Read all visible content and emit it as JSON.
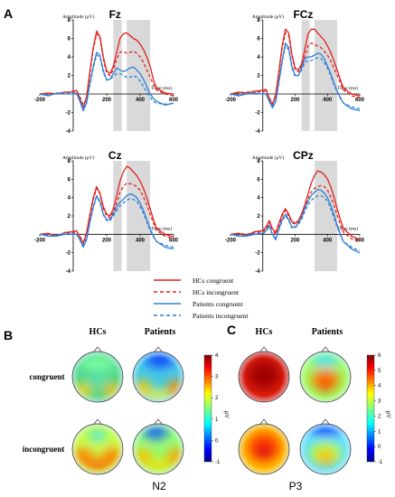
{
  "panels": {
    "A": "A",
    "B": "B",
    "C": "C"
  },
  "chart_data": [
    {
      "type": "line",
      "title": "Fz",
      "ylabel": "Amplitude (μV)",
      "xlabel": "Time (ms)",
      "xlim": [
        -200,
        600
      ],
      "ylim": [
        -4,
        8
      ],
      "xticks": [
        "-200",
        "200",
        "400",
        "600"
      ],
      "yticks": [
        "-4",
        "-2",
        "2",
        "4",
        "6",
        "8"
      ],
      "shaded_windows_ms": [
        [
          240,
          290
        ],
        [
          320,
          460
        ]
      ],
      "x": [
        -200,
        -150,
        -100,
        -50,
        0,
        20,
        40,
        60,
        80,
        100,
        120,
        140,
        160,
        180,
        200,
        220,
        240,
        260,
        280,
        300,
        320,
        340,
        360,
        380,
        400,
        420,
        440,
        460,
        480,
        500,
        550,
        600
      ],
      "series": [
        {
          "name": "HCs congruent",
          "values": [
            0,
            0.1,
            0,
            0.2,
            0.2,
            0.4,
            -0.5,
            -1.5,
            -0.3,
            2.5,
            5.0,
            6.8,
            6.2,
            4.0,
            2.5,
            2.2,
            3.0,
            4.5,
            6.0,
            6.5,
            6.6,
            6.3,
            6.0,
            5.8,
            5.4,
            4.8,
            4.0,
            3.0,
            1.5,
            0.6,
            0.1,
            0
          ]
        },
        {
          "name": "HCs incongruent",
          "values": [
            0,
            0,
            0.1,
            0.1,
            0.3,
            0.3,
            -0.3,
            -1.2,
            -0.5,
            2.2,
            4.8,
            6.5,
            6.0,
            3.8,
            2.2,
            2.0,
            2.6,
            3.8,
            4.5,
            4.6,
            4.4,
            4.5,
            4.6,
            4.4,
            4.0,
            3.4,
            2.6,
            1.8,
            1.0,
            0.4,
            0,
            -0.2
          ]
        },
        {
          "name": "Patients congruent",
          "values": [
            0,
            -0.2,
            0.1,
            0,
            0,
            0.1,
            -0.8,
            -1.8,
            -1.0,
            1.2,
            3.0,
            4.5,
            4.2,
            2.5,
            1.5,
            1.6,
            2.2,
            2.8,
            2.6,
            2.4,
            2.6,
            2.8,
            2.9,
            2.6,
            2.2,
            1.6,
            0.8,
            0,
            -0.5,
            -0.8,
            -1.2,
            -1.0
          ]
        },
        {
          "name": "Patients incongruent",
          "values": [
            0,
            -0.1,
            0,
            0.1,
            0.1,
            0,
            -0.6,
            -1.6,
            -0.8,
            1.0,
            2.8,
            4.2,
            4.0,
            2.3,
            1.5,
            1.6,
            1.9,
            2.2,
            2.2,
            2.0,
            1.8,
            1.8,
            2.0,
            1.8,
            1.4,
            0.8,
            0.2,
            -0.4,
            -0.8,
            -1.0,
            -1.1,
            -1.0
          ]
        }
      ]
    },
    {
      "type": "line",
      "title": "FCz",
      "ylabel": "Amplitude (μV)",
      "xlabel": "Time (ms)",
      "xlim": [
        -200,
        600
      ],
      "ylim": [
        -4,
        8
      ],
      "xticks": [
        "-200",
        "200",
        "400",
        "600"
      ],
      "yticks": [
        "-4",
        "-2",
        "2",
        "4",
        "6",
        "8"
      ],
      "shaded_windows_ms": [
        [
          240,
          290
        ],
        [
          320,
          460
        ]
      ],
      "x": [
        -200,
        -150,
        -100,
        -50,
        0,
        20,
        40,
        60,
        80,
        100,
        120,
        140,
        160,
        180,
        200,
        220,
        240,
        260,
        280,
        300,
        320,
        340,
        360,
        380,
        400,
        420,
        440,
        460,
        480,
        500,
        550,
        600
      ],
      "series": [
        {
          "name": "HCs congruent",
          "values": [
            0,
            0.2,
            0.1,
            0.3,
            0.4,
            0.5,
            -0.5,
            -1.2,
            0,
            2.5,
            5.2,
            7.0,
            6.6,
            4.3,
            2.8,
            2.6,
            3.2,
            4.8,
            6.5,
            7.0,
            7.0,
            6.6,
            6.2,
            5.8,
            5.2,
            4.5,
            3.6,
            2.6,
            1.5,
            0.6,
            0,
            -0.2
          ]
        },
        {
          "name": "HCs incongruent",
          "values": [
            0,
            0.1,
            0.2,
            0.2,
            0.3,
            0.3,
            -0.4,
            -1.0,
            -0.3,
            2.2,
            5.0,
            6.6,
            6.3,
            4.1,
            2.6,
            2.4,
            3.0,
            4.0,
            5.2,
            5.5,
            5.3,
            5.2,
            5.0,
            4.6,
            4.2,
            3.6,
            2.8,
            2.0,
            1.2,
            0.4,
            -0.2,
            -0.4
          ]
        },
        {
          "name": "Patients congruent",
          "values": [
            0,
            -0.2,
            0,
            0.1,
            0,
            0,
            -0.8,
            -1.5,
            -0.8,
            1.4,
            3.6,
            5.5,
            5.0,
            3.0,
            2.0,
            2.0,
            2.8,
            3.8,
            4.0,
            4.0,
            4.2,
            4.4,
            4.3,
            3.8,
            3.0,
            2.2,
            1.2,
            0.3,
            -0.4,
            -1.0,
            -1.6,
            -1.8
          ]
        },
        {
          "name": "Patients incongruent",
          "values": [
            0,
            -0.1,
            0.1,
            0,
            0.1,
            0,
            -0.7,
            -1.3,
            -0.7,
            1.2,
            3.4,
            5.2,
            4.8,
            2.8,
            1.9,
            2.0,
            2.6,
            3.4,
            3.6,
            3.6,
            3.8,
            3.9,
            3.8,
            3.4,
            2.8,
            2.0,
            1.0,
            0.2,
            -0.5,
            -1.0,
            -1.4,
            -1.6
          ]
        }
      ]
    },
    {
      "type": "line",
      "title": "Cz",
      "ylabel": "Amplitude (μV)",
      "xlabel": "Time (ms)",
      "xlim": [
        -200,
        600
      ],
      "ylim": [
        -4,
        8
      ],
      "xticks": [
        "-200",
        "200",
        "400",
        "600"
      ],
      "yticks": [
        "-4",
        "-2",
        "2",
        "4",
        "6",
        "8"
      ],
      "shaded_windows_ms": [
        [
          240,
          290
        ],
        [
          320,
          460
        ]
      ],
      "x": [
        -200,
        -150,
        -100,
        -50,
        0,
        20,
        40,
        60,
        80,
        100,
        120,
        140,
        160,
        180,
        200,
        220,
        240,
        260,
        280,
        300,
        320,
        340,
        360,
        380,
        400,
        420,
        440,
        460,
        480,
        500,
        550,
        600
      ],
      "series": [
        {
          "name": "HCs congruent",
          "values": [
            0,
            0.1,
            -0.2,
            0.2,
            0.3,
            0.4,
            -0.3,
            -1.0,
            0.2,
            2.2,
            4.0,
            5.2,
            4.5,
            3.0,
            2.2,
            2.0,
            2.8,
            4.2,
            5.8,
            6.8,
            7.4,
            7.2,
            6.8,
            6.4,
            5.8,
            5.0,
            4.0,
            2.8,
            1.6,
            0.6,
            0,
            -0.3
          ]
        },
        {
          "name": "HCs incongruent",
          "values": [
            0,
            0,
            -0.1,
            0.1,
            0.2,
            0.3,
            -0.2,
            -0.8,
            0,
            2.0,
            3.8,
            5.0,
            4.4,
            2.8,
            2.0,
            1.8,
            2.4,
            3.4,
            4.6,
            5.2,
            5.6,
            5.5,
            5.4,
            5.2,
            4.8,
            4.1,
            3.2,
            2.2,
            1.2,
            0.4,
            -0.2,
            -0.5
          ]
        },
        {
          "name": "Patients congruent",
          "values": [
            0,
            -0.2,
            -0.2,
            0,
            0,
            0,
            -0.6,
            -1.4,
            -0.6,
            1.4,
            3.0,
            4.2,
            3.6,
            2.2,
            1.6,
            1.6,
            2.2,
            3.0,
            3.5,
            3.8,
            4.2,
            4.4,
            4.3,
            4.0,
            3.4,
            2.6,
            1.6,
            0.6,
            -0.2,
            -0.8,
            -1.4,
            -1.6
          ]
        },
        {
          "name": "Patients incongruent",
          "values": [
            0,
            -0.1,
            -0.1,
            0.1,
            0.1,
            0,
            -0.5,
            -1.2,
            -0.4,
            1.3,
            2.9,
            4.1,
            3.5,
            2.1,
            1.5,
            1.5,
            2.0,
            2.6,
            3.1,
            3.4,
            3.7,
            3.9,
            3.8,
            3.6,
            3.0,
            2.3,
            1.4,
            0.4,
            -0.3,
            -0.8,
            -1.2,
            -1.4
          ]
        }
      ]
    },
    {
      "type": "line",
      "title": "CPz",
      "ylabel": "Amplitude (μV)",
      "xlabel": "Time (ms)",
      "xlim": [
        -200,
        600
      ],
      "ylim": [
        -4,
        8
      ],
      "xticks": [
        "-200",
        "200",
        "400",
        "600"
      ],
      "yticks": [
        "-4",
        "-2",
        "2",
        "4",
        "6",
        "8"
      ],
      "shaded_windows_ms": [
        [
          320,
          460
        ]
      ],
      "x": [
        -200,
        -150,
        -100,
        -50,
        0,
        20,
        40,
        60,
        80,
        100,
        120,
        140,
        160,
        180,
        200,
        220,
        240,
        260,
        280,
        300,
        320,
        340,
        360,
        380,
        400,
        420,
        440,
        460,
        480,
        500,
        550,
        600
      ],
      "series": [
        {
          "name": "HCs congruent",
          "values": [
            0,
            0.1,
            -0.1,
            0.3,
            0.4,
            0.8,
            1.5,
            0.6,
            0.2,
            1.2,
            2.2,
            2.8,
            2.2,
            1.4,
            1.2,
            1.5,
            2.2,
            3.2,
            4.4,
            5.6,
            6.4,
            6.9,
            6.8,
            6.5,
            6.0,
            5.2,
            4.1,
            2.8,
            1.6,
            0.6,
            -0.2,
            -0.6
          ]
        },
        {
          "name": "HCs incongruent",
          "values": [
            0,
            0.1,
            0,
            0.2,
            0.3,
            0.6,
            1.3,
            0.5,
            0,
            1.0,
            2.0,
            2.6,
            2.0,
            1.3,
            1.1,
            1.4,
            2.0,
            2.9,
            3.9,
            4.6,
            5.0,
            5.2,
            5.3,
            5.2,
            4.8,
            4.1,
            3.2,
            2.1,
            1.0,
            0.2,
            -0.5,
            -0.8
          ]
        },
        {
          "name": "Patients congruent",
          "values": [
            0,
            -0.2,
            -0.2,
            0,
            0.1,
            0.4,
            1.0,
            0,
            -0.6,
            0.6,
            1.6,
            2.2,
            1.6,
            0.8,
            0.8,
            1.2,
            1.8,
            2.8,
            3.6,
            4.2,
            4.6,
            4.9,
            4.8,
            4.5,
            4.0,
            3.2,
            2.2,
            1.0,
            0,
            -0.8,
            -1.6,
            -2.0
          ]
        },
        {
          "name": "Patients incongruent",
          "values": [
            0,
            -0.1,
            -0.1,
            0.1,
            0.1,
            0.3,
            0.9,
            -0.1,
            -0.4,
            0.5,
            1.5,
            2.0,
            1.5,
            0.7,
            0.7,
            1.1,
            1.6,
            2.5,
            3.2,
            3.7,
            4.0,
            4.2,
            4.2,
            4.0,
            3.6,
            2.8,
            1.8,
            0.8,
            -0.1,
            -0.8,
            -1.4,
            -1.8
          ]
        }
      ]
    }
  ],
  "legend": {
    "items": [
      {
        "label": "HCs congruent",
        "color": "#e3201b",
        "style": "solid"
      },
      {
        "label": "HCs incongruent",
        "color": "#e3201b",
        "style": "dashed"
      },
      {
        "label": "Patients congruent",
        "color": "#2f7fd6",
        "style": "solid"
      },
      {
        "label": "Patients incongruent",
        "color": "#2f7fd6",
        "style": "dashed"
      }
    ]
  },
  "topomaps": {
    "group_labels": [
      "HCs",
      "Patients"
    ],
    "condition_labels": [
      "congruent",
      "incongruent"
    ],
    "N2": {
      "label": "N2",
      "colorbar": {
        "unit": "μV",
        "ticks": [
          "4",
          "3",
          "2",
          "1",
          "0",
          "-1"
        ],
        "min": -1,
        "max": 4
      }
    },
    "P3": {
      "label": "P3",
      "colorbar": {
        "unit": "μV",
        "ticks": [
          "6",
          "5",
          "4",
          "3",
          "2",
          "1",
          "0",
          "-1"
        ],
        "min": -1,
        "max": 6
      }
    }
  },
  "colors": {
    "hcs": "#e3201b",
    "patients": "#2f7fd6",
    "shade": "#d9d9d9"
  }
}
